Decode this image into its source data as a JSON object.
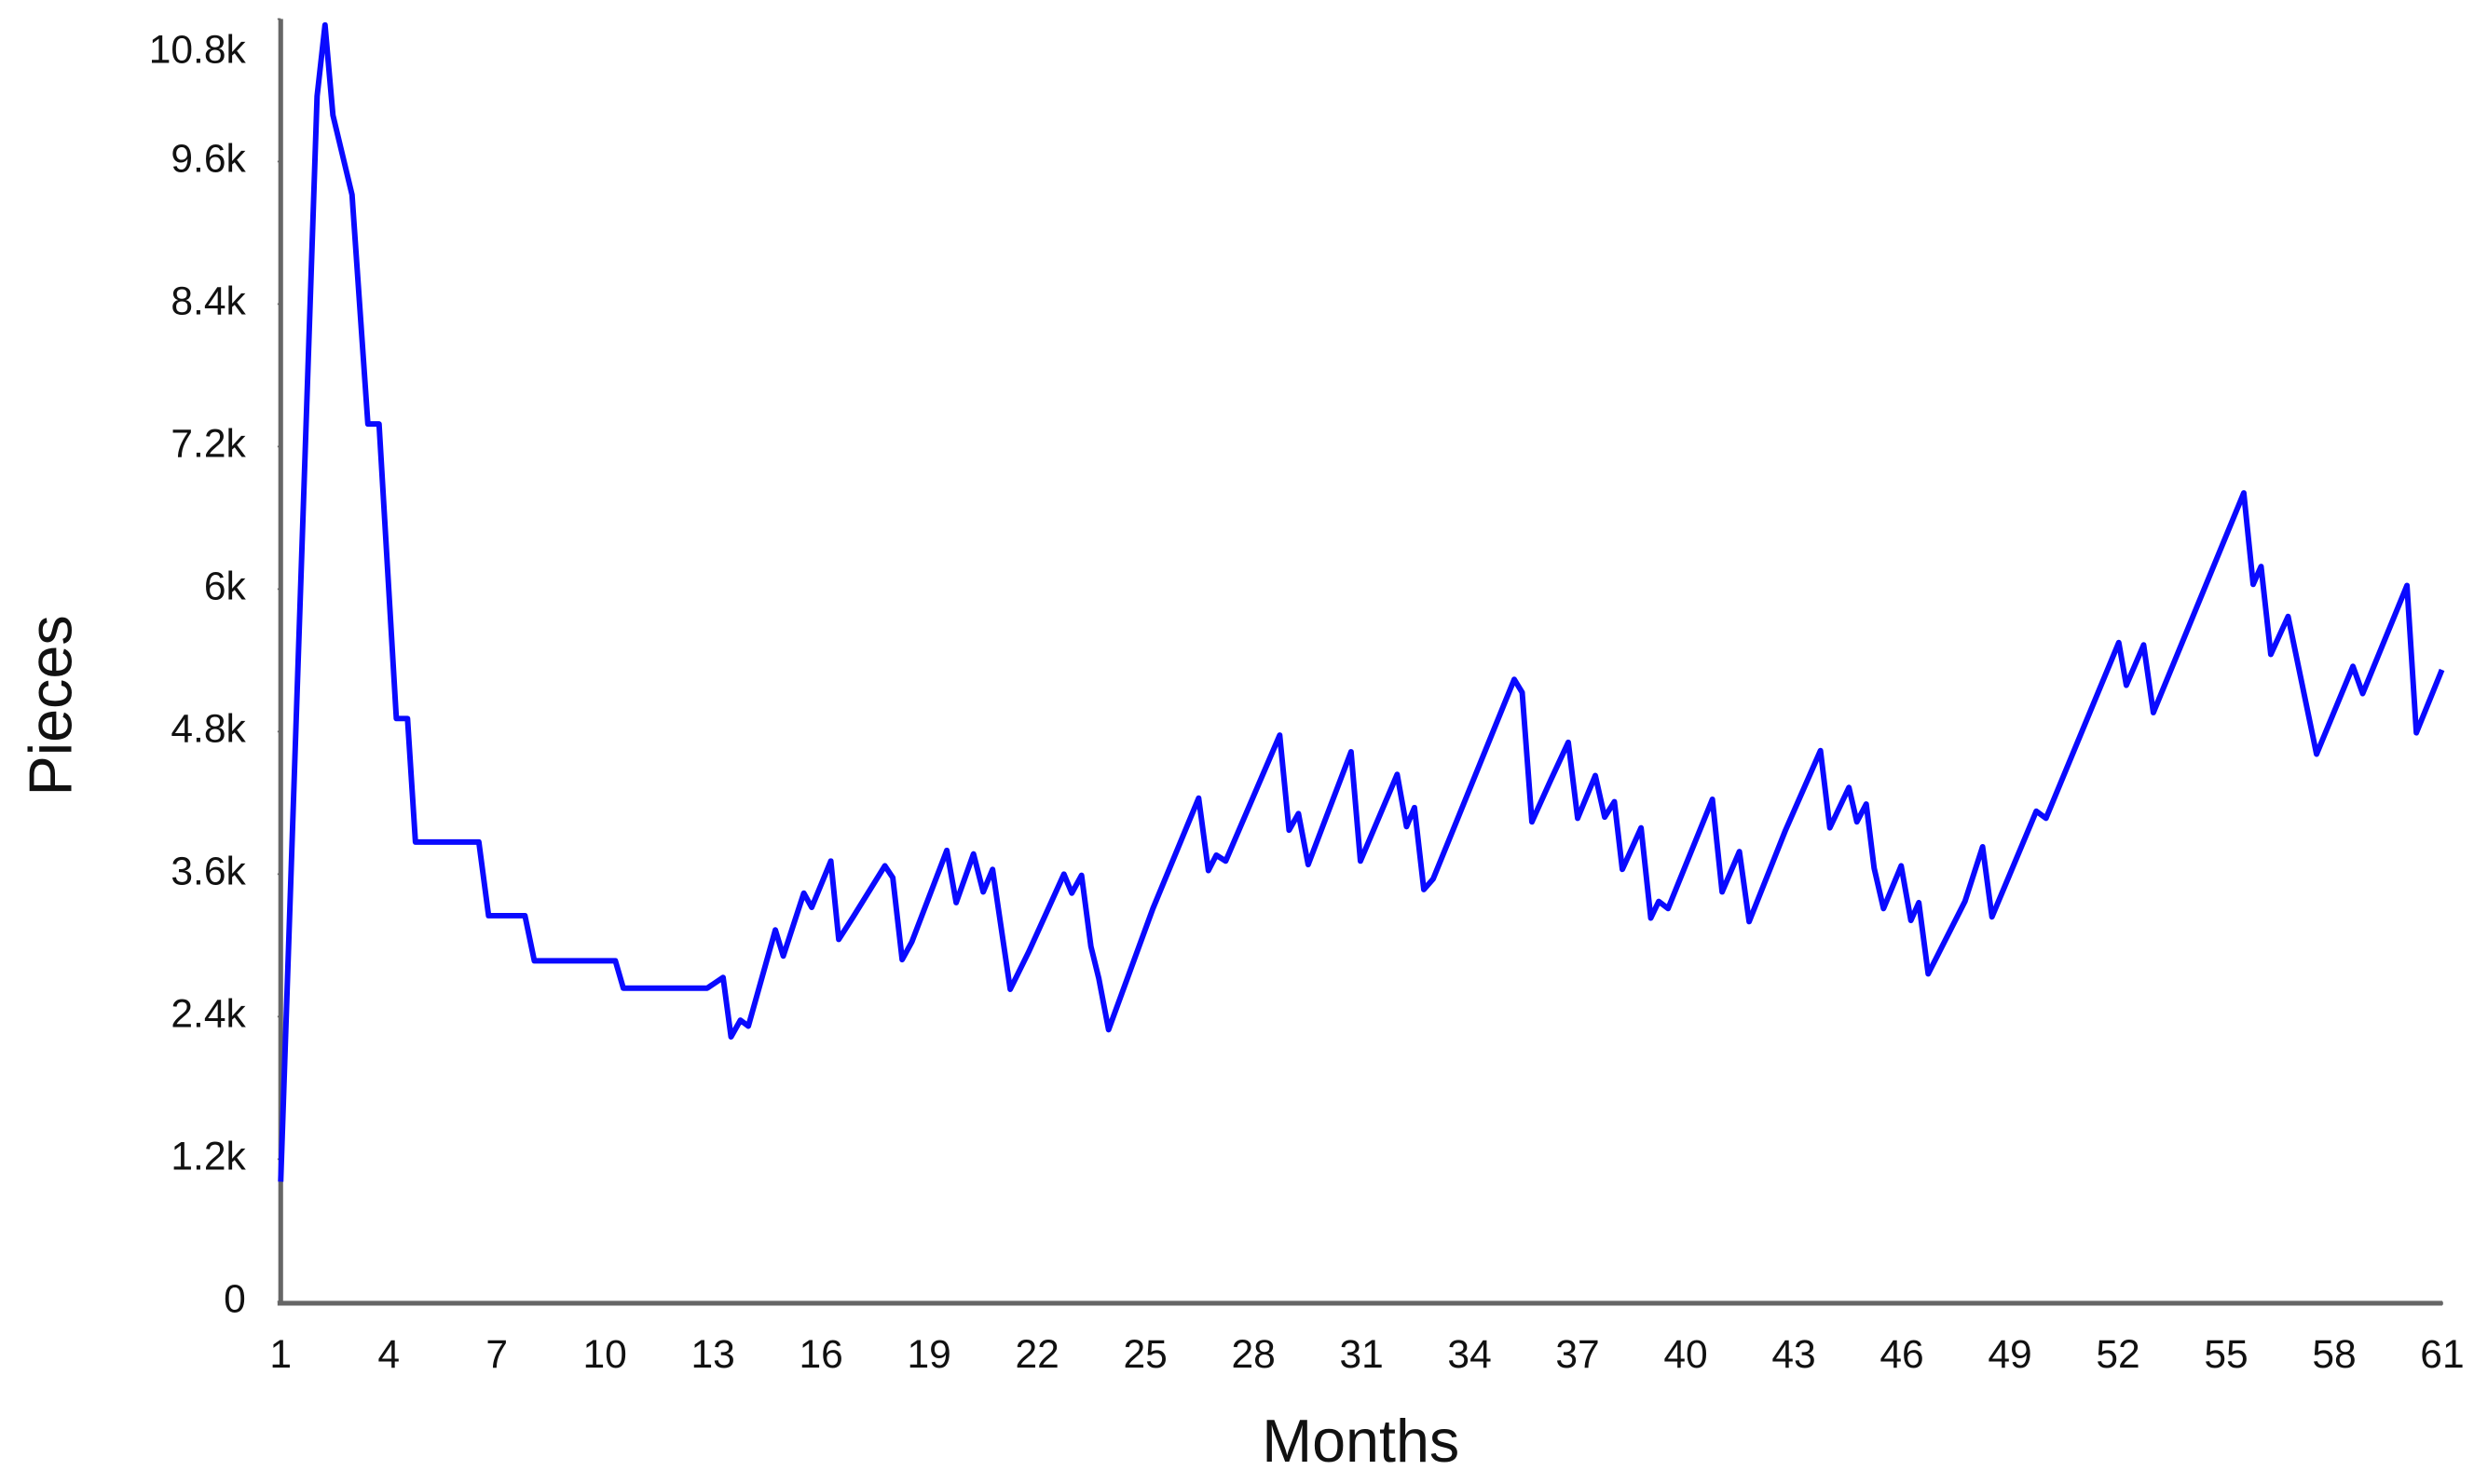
{
  "chart_data": {
    "type": "line",
    "xlabel": "Months",
    "ylabel": "Pieces",
    "x": [
      1.0,
      2.01,
      2.23,
      2.45,
      2.98,
      3.42,
      3.73,
      4.21,
      4.52,
      4.74,
      6.5,
      6.77,
      7.78,
      8.04,
      10.29,
      10.51,
      12.84,
      13.28,
      13.5,
      13.76,
      13.98,
      14.73,
      14.95,
      15.52,
      15.74,
      16.27,
      16.49,
      16.89,
      17.77,
      17.99,
      18.25,
      18.52,
      19.49,
      19.75,
      20.23,
      20.5,
      20.76,
      21.25,
      21.77,
      22.74,
      22.96,
      23.23,
      23.49,
      23.71,
      23.98,
      25.21,
      26.48,
      26.75,
      26.97,
      27.23,
      28.73,
      28.99,
      29.25,
      29.52,
      30.71,
      30.97,
      31.99,
      32.25,
      32.47,
      32.73,
      32.99,
      35.24,
      35.46,
      35.73,
      36.25,
      36.74,
      37.0,
      37.49,
      37.75,
      38.02,
      38.24,
      38.76,
      39.03,
      39.25,
      39.51,
      40.74,
      41.01,
      41.49,
      41.76,
      42.77,
      43.74,
      44.0,
      44.53,
      44.75,
      45.01,
      45.23,
      45.49,
      45.98,
      46.25,
      46.47,
      46.73,
      47.75,
      48.24,
      48.5,
      49.73,
      50.0,
      52.02,
      52.23,
      52.71,
      52.98,
      55.49,
      55.75,
      55.97,
      56.24,
      56.72,
      57.51,
      58.52,
      58.79,
      60.02,
      60.28,
      60.99
    ],
    "series": [
      {
        "color": "#0a0aff",
        "values": [
          1010,
          10150,
          10750,
          9990,
          9320,
          7390,
          7390,
          4910,
          4910,
          3870,
          3870,
          3250,
          3250,
          2870,
          2870,
          2640,
          2640,
          2730,
          2230,
          2370,
          2320,
          3130,
          2910,
          3440,
          3320,
          3710,
          3050,
          3240,
          3670,
          3570,
          2880,
          3030,
          3800,
          3360,
          3770,
          3450,
          3640,
          2630,
          2950,
          3600,
          3440,
          3590,
          2990,
          2720,
          2290,
          3310,
          4240,
          3630,
          3760,
          3710,
          4770,
          3970,
          4110,
          3680,
          4630,
          3710,
          4440,
          4000,
          4160,
          3470,
          3560,
          5240,
          5130,
          4040,
          4390,
          4710,
          4070,
          4430,
          4080,
          4210,
          3640,
          3990,
          3230,
          3370,
          3310,
          4230,
          3450,
          3790,
          3200,
          3970,
          4640,
          3990,
          4330,
          4040,
          4190,
          3650,
          3310,
          3670,
          3210,
          3360,
          2760,
          3370,
          3830,
          3240,
          4130,
          4070,
          5550,
          5190,
          5530,
          4960,
          6810,
          6040,
          6190,
          5450,
          5770,
          4610,
          5350,
          5120,
          6030,
          4790,
          5320
        ]
      }
    ],
    "xlim": [
      1,
      61
    ],
    "xticks": [
      1,
      4,
      7,
      10,
      13,
      16,
      19,
      22,
      25,
      28,
      31,
      34,
      37,
      40,
      43,
      46,
      49,
      52,
      55,
      58,
      61
    ],
    "ylim": [
      0,
      10800
    ],
    "yticks": [
      0,
      {
        "value": 1200,
        "label": "1.2k"
      },
      {
        "value": 2400,
        "label": "2.4k"
      },
      {
        "value": 3600,
        "label": "3.6k"
      },
      {
        "value": 4800,
        "label": "4.8k"
      },
      {
        "value": 6000,
        "label": "6k"
      },
      {
        "value": 7200,
        "label": "7.2k"
      },
      {
        "value": 8400,
        "label": "8.4k"
      },
      {
        "value": 9600,
        "label": "9.6k"
      },
      {
        "value": 10800,
        "label": "10.8k"
      }
    ],
    "grid": false
  }
}
